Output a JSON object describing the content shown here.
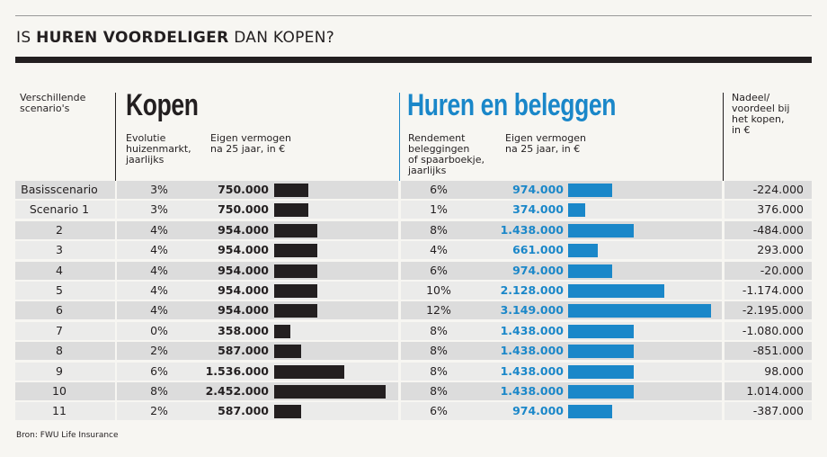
{
  "title": {
    "prefix": "IS ",
    "bold": "HUREN VOORDELIGER",
    "suffix": " DAN KOPEN?"
  },
  "chart_data": {
    "type": "bar-table",
    "category_header": "Verschillende\nscenario's",
    "categories": [
      "Basisscenario",
      "Scenario 1",
      "2",
      "3",
      "4",
      "5",
      "6",
      "7",
      "8",
      "9",
      "10",
      "11"
    ],
    "kopen": {
      "title": "Kopen",
      "color": "#231f20",
      "rate_header": "Evolutie\nhuizenmarkt,\njaarlijks",
      "rates": [
        "3%",
        "3%",
        "4%",
        "4%",
        "4%",
        "4%",
        "4%",
        "0%",
        "2%",
        "6%",
        "8%",
        "2%"
      ],
      "value_header": "Eigen vermogen\nna 25 jaar, in €",
      "values": [
        750000,
        750000,
        954000,
        954000,
        954000,
        954000,
        954000,
        358000,
        587000,
        1536000,
        2452000,
        587000
      ],
      "value_labels": [
        "750.000",
        "750.000",
        "954.000",
        "954.000",
        "954.000",
        "954.000",
        "954.000",
        "358.000",
        "587.000",
        "1.536.000",
        "2.452.000",
        "587.000"
      ]
    },
    "huren": {
      "title": "Huren en beleggen",
      "color": "#1a87c9",
      "rate_header": "Rendement\nbeleggingen\nof spaarboekje,\njaarlijks",
      "rates": [
        "6%",
        "1%",
        "8%",
        "4%",
        "6%",
        "10%",
        "12%",
        "8%",
        "8%",
        "8%",
        "8%",
        "6%"
      ],
      "value_header": "Eigen vermogen\nna 25 jaar, in €",
      "values": [
        974000,
        374000,
        1438000,
        661000,
        974000,
        2128000,
        3149000,
        1438000,
        1438000,
        1438000,
        1438000,
        974000
      ],
      "value_labels": [
        "974.000",
        "374.000",
        "1.438.000",
        "661.000",
        "974.000",
        "2.128.000",
        "3.149.000",
        "1.438.000",
        "1.438.000",
        "1.438.000",
        "1.438.000",
        "974.000"
      ]
    },
    "difference": {
      "header": "Nadeel/\nvoordeel bij\nhet kopen,\nin €",
      "labels": [
        "-224.000",
        "376.000",
        "-484.000",
        "293.000",
        "-20.000",
        "-1.174.000",
        "-2.195.000",
        "-1.080.000",
        "-851.000",
        "98.000",
        "1.014.000",
        "-387.000"
      ]
    }
  },
  "source": "Bron: FWU Life Insurance"
}
